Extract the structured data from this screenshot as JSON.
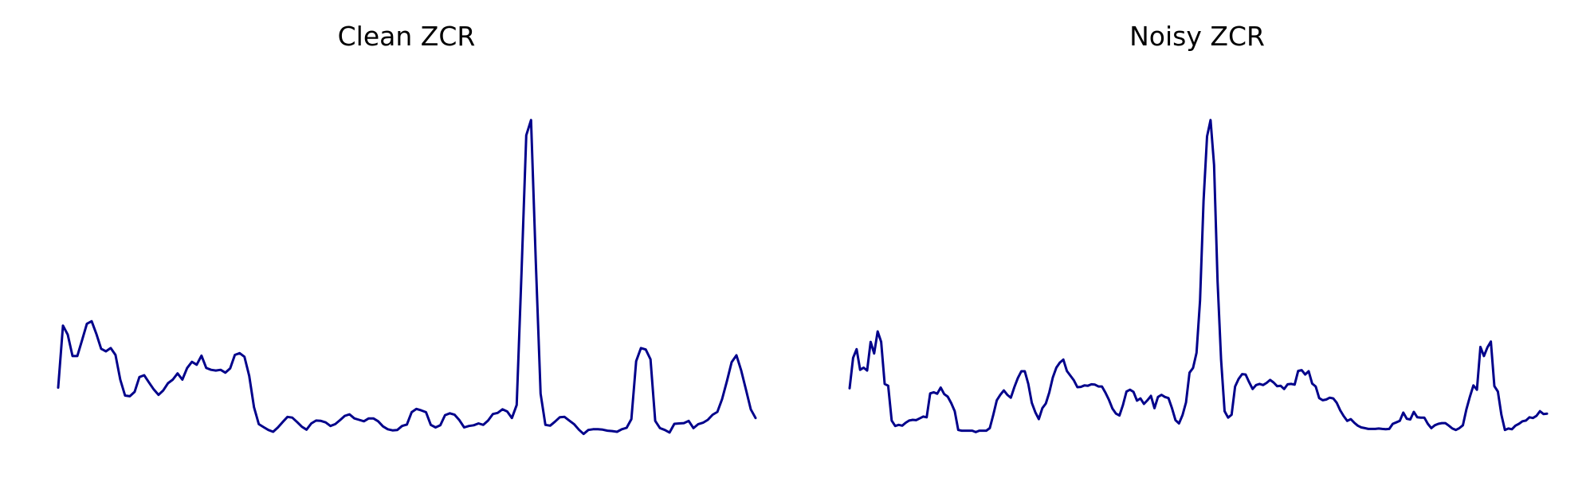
{
  "chart_data": [
    {
      "type": "line",
      "title": "Clean ZCR",
      "xlabel": "",
      "ylabel": "",
      "axes_visible": false,
      "grid": false,
      "color": "#00008b",
      "xlim": [
        0,
        144
      ],
      "ylim": [
        0,
        1
      ],
      "values": [
        0.144,
        0.315,
        0.29,
        0.231,
        0.231,
        0.275,
        0.32,
        0.327,
        0.292,
        0.251,
        0.244,
        0.253,
        0.234,
        0.166,
        0.122,
        0.12,
        0.132,
        0.173,
        0.178,
        0.158,
        0.139,
        0.124,
        0.136,
        0.156,
        0.166,
        0.183,
        0.166,
        0.198,
        0.215,
        0.207,
        0.232,
        0.198,
        0.193,
        0.191,
        0.193,
        0.185,
        0.197,
        0.234,
        0.239,
        0.229,
        0.176,
        0.09,
        0.043,
        0.035,
        0.027,
        0.022,
        0.034,
        0.049,
        0.063,
        0.061,
        0.049,
        0.036,
        0.028,
        0.045,
        0.053,
        0.052,
        0.048,
        0.038,
        0.043,
        0.054,
        0.066,
        0.07,
        0.059,
        0.055,
        0.051,
        0.059,
        0.059,
        0.051,
        0.037,
        0.029,
        0.026,
        0.027,
        0.038,
        0.042,
        0.076,
        0.085,
        0.081,
        0.076,
        0.041,
        0.034,
        0.04,
        0.068,
        0.073,
        0.069,
        0.054,
        0.034,
        0.038,
        0.04,
        0.045,
        0.041,
        0.053,
        0.071,
        0.074,
        0.084,
        0.078,
        0.06,
        0.096,
        0.458,
        0.84,
        0.882,
        0.489,
        0.127,
        0.041,
        0.039,
        0.05,
        0.062,
        0.063,
        0.053,
        0.043,
        0.028,
        0.016,
        0.027,
        0.029,
        0.029,
        0.028,
        0.025,
        0.024,
        0.022,
        0.029,
        0.033,
        0.057,
        0.217,
        0.253,
        0.249,
        0.222,
        0.052,
        0.032,
        0.027,
        0.02,
        0.044,
        0.045,
        0.046,
        0.052,
        0.032,
        0.043,
        0.047,
        0.055,
        0.069,
        0.077,
        0.112,
        0.161,
        0.214,
        0.233,
        0.191,
        0.138,
        0.084,
        0.06
      ]
    },
    {
      "type": "line",
      "title": "Noisy ZCR",
      "xlabel": "",
      "ylabel": "",
      "axes_visible": false,
      "grid": false,
      "color": "#00008b",
      "xlim": [
        0,
        144
      ],
      "ylim": [
        0,
        1
      ],
      "values": [
        0.142,
        0.226,
        0.25,
        0.193,
        0.199,
        0.191,
        0.27,
        0.238,
        0.299,
        0.27,
        0.154,
        0.149,
        0.053,
        0.038,
        0.041,
        0.039,
        0.047,
        0.053,
        0.055,
        0.054,
        0.059,
        0.064,
        0.062,
        0.128,
        0.131,
        0.127,
        0.144,
        0.126,
        0.119,
        0.101,
        0.079,
        0.027,
        0.025,
        0.025,
        0.025,
        0.025,
        0.021,
        0.025,
        0.025,
        0.025,
        0.032,
        0.069,
        0.109,
        0.124,
        0.136,
        0.124,
        0.116,
        0.145,
        0.17,
        0.189,
        0.189,
        0.154,
        0.102,
        0.076,
        0.057,
        0.087,
        0.1,
        0.131,
        0.172,
        0.199,
        0.213,
        0.221,
        0.19,
        0.177,
        0.164,
        0.145,
        0.146,
        0.15,
        0.149,
        0.153,
        0.152,
        0.147,
        0.147,
        0.13,
        0.11,
        0.086,
        0.072,
        0.067,
        0.096,
        0.133,
        0.138,
        0.132,
        0.108,
        0.114,
        0.099,
        0.109,
        0.121,
        0.087,
        0.118,
        0.124,
        0.118,
        0.115,
        0.087,
        0.054,
        0.045,
        0.068,
        0.103,
        0.185,
        0.198,
        0.24,
        0.384,
        0.659,
        0.837,
        0.882,
        0.758,
        0.437,
        0.221,
        0.079,
        0.061,
        0.069,
        0.147,
        0.168,
        0.181,
        0.18,
        0.159,
        0.14,
        0.151,
        0.154,
        0.151,
        0.157,
        0.165,
        0.158,
        0.148,
        0.149,
        0.14,
        0.153,
        0.154,
        0.152,
        0.19,
        0.192,
        0.18,
        0.189,
        0.155,
        0.147,
        0.115,
        0.109,
        0.111,
        0.116,
        0.114,
        0.102,
        0.081,
        0.065,
        0.052,
        0.057,
        0.047,
        0.039,
        0.034,
        0.032,
        0.03,
        0.03,
        0.03,
        0.031,
        0.03,
        0.029,
        0.03,
        0.044,
        0.048,
        0.052,
        0.075,
        0.058,
        0.056,
        0.077,
        0.062,
        0.061,
        0.061,
        0.044,
        0.032,
        0.04,
        0.044,
        0.046,
        0.046,
        0.039,
        0.031,
        0.027,
        0.032,
        0.04,
        0.084,
        0.119,
        0.15,
        0.138,
        0.256,
        0.231,
        0.255,
        0.271,
        0.148,
        0.133,
        0.069,
        0.027,
        0.031,
        0.029,
        0.039,
        0.044,
        0.051,
        0.053,
        0.062,
        0.06,
        0.066,
        0.079,
        0.071,
        0.072
      ]
    }
  ]
}
